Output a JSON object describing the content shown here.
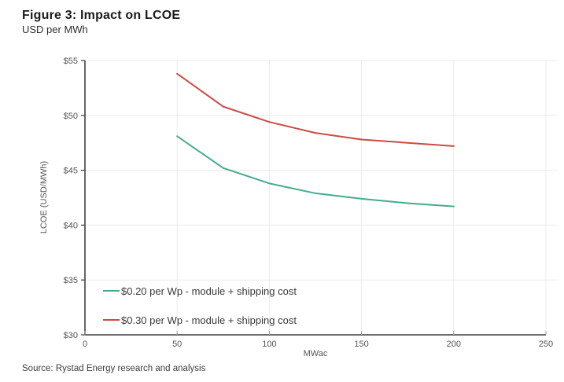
{
  "header": {
    "title": "Figure 3: Impact on LCOE",
    "subtitle": "USD per MWh"
  },
  "source_note": "Source: Rystad Energy research and analysis",
  "chart_data": {
    "type": "line",
    "title": "Figure 3: Impact on LCOE",
    "subtitle": "USD per MWh",
    "xlabel": "MWac",
    "ylabel": "LCOE (USD/MWh)",
    "xlim": [
      0,
      250
    ],
    "ylim": [
      30,
      55
    ],
    "x_ticks": [
      0,
      50,
      100,
      150,
      200,
      250
    ],
    "y_ticks": [
      30,
      35,
      40,
      45,
      50,
      55
    ],
    "y_tick_prefix": "$",
    "grid": true,
    "legend_position": "inside-bottom-left",
    "x": [
      50,
      75,
      100,
      125,
      150,
      175,
      200
    ],
    "series": [
      {
        "name": "$0.20 per Wp - module + shipping cost",
        "color": "#44ac8c",
        "values": [
          48.1,
          45.2,
          43.8,
          42.9,
          42.4,
          42.0,
          41.7
        ]
      },
      {
        "name": "$0.30 per Wp - module + shipping cost",
        "color": "#cc4a45",
        "values": [
          53.8,
          50.8,
          49.4,
          48.4,
          47.8,
          47.5,
          47.2
        ]
      }
    ]
  }
}
